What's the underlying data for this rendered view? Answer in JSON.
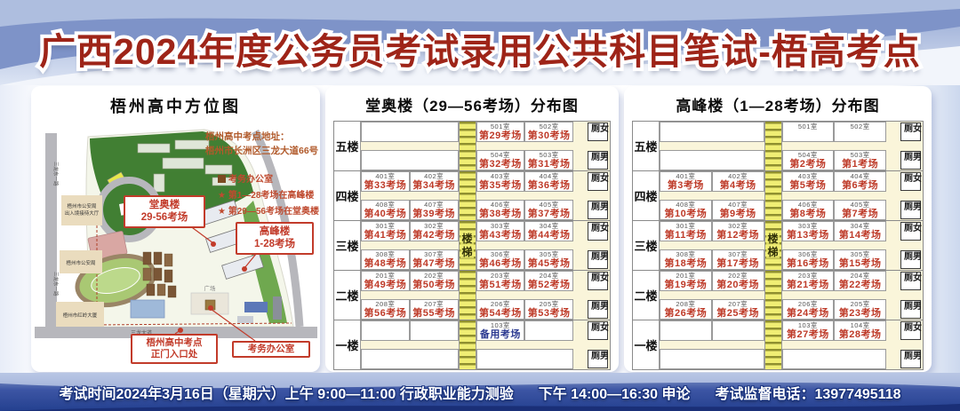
{
  "title": "广西2024年度公务员考试录用公共科目笔试-梧高考点",
  "colors": {
    "title_red": "#9E2418",
    "exam_red": "#BE3A28",
    "backup_blue": "#2B3990",
    "table_bg": "#FAF5DA",
    "stair_yellow": "#F0EE74"
  },
  "map": {
    "title": "梧州高中方位图",
    "address1": "梧州高中考点地址：",
    "address2": "梧州市长洲区三龙大道66号",
    "legend_office": "考务办公室",
    "legend_star1": "★ 第1—28考场在高峰楼",
    "legend_star2": "★ 第29—56考场在堂奥楼",
    "label_tangao1": "堂奥楼",
    "label_tangao2": "29-56考场",
    "label_gaofeng1": "高峰楼",
    "label_gaofeng2": "1-28考场",
    "label_gate1": "梧州高中考点",
    "label_gate2": "正门入口处",
    "label_office": "考务办公室",
    "bld_police_hall1": "梧州市公安局",
    "bld_police_hall2": "出入境接待大厅",
    "bld_police": "梧州市公安局",
    "bld_tower": "梧州市红岭大厦",
    "road_left": "三龙东一路",
    "road_bottom": "三龙大道",
    "label_plaza": "广场"
  },
  "buildings": [
    {
      "id": "tangao",
      "title": "堂奥楼（29—56考场）分布图",
      "stair_label": "楼梯",
      "toilet_female": "女厕",
      "toilet_male": "男厕",
      "floors": [
        {
          "label": "五楼",
          "top": [
            {
              "span": 2
            },
            {
              "room": "501室",
              "exam": "第29考场"
            },
            {
              "room": "502室",
              "exam": "第30考场"
            }
          ],
          "bottom": [
            {
              "span": 2
            },
            {
              "room": "504室",
              "exam": "第32考场"
            },
            {
              "room": "503室",
              "exam": "第31考场"
            }
          ]
        },
        {
          "label": "四楼",
          "top": [
            {
              "room": "401室",
              "exam": "第33考场"
            },
            {
              "room": "402室",
              "exam": "第34考场"
            },
            {
              "room": "403室",
              "exam": "第35考场"
            },
            {
              "room": "404室",
              "exam": "第36考场"
            }
          ],
          "bottom": [
            {
              "room": "408室",
              "exam": "第40考场"
            },
            {
              "room": "407室",
              "exam": "第39考场"
            },
            {
              "room": "406室",
              "exam": "第38考场"
            },
            {
              "room": "405室",
              "exam": "第37考场"
            }
          ]
        },
        {
          "label": "三楼",
          "top": [
            {
              "room": "301室",
              "exam": "第41考场"
            },
            {
              "room": "302室",
              "exam": "第42考场"
            },
            {
              "room": "303室",
              "exam": "第43考场"
            },
            {
              "room": "304室",
              "exam": "第44考场"
            }
          ],
          "bottom": [
            {
              "room": "308室",
              "exam": "第48考场"
            },
            {
              "room": "307室",
              "exam": "第47考场"
            },
            {
              "room": "306室",
              "exam": "第46考场"
            },
            {
              "room": "305室",
              "exam": "第45考场"
            }
          ]
        },
        {
          "label": "二楼",
          "top": [
            {
              "room": "201室",
              "exam": "第49考场"
            },
            {
              "room": "202室",
              "exam": "第50考场"
            },
            {
              "room": "203室",
              "exam": "第51考场"
            },
            {
              "room": "204室",
              "exam": "第52考场"
            }
          ],
          "bottom": [
            {
              "room": "208室",
              "exam": "第56考场"
            },
            {
              "room": "207室",
              "exam": "第55考场"
            },
            {
              "room": "206室",
              "exam": "第54考场"
            },
            {
              "room": "205室",
              "exam": "第53考场"
            }
          ]
        },
        {
          "label": "一楼",
          "top": [
            {},
            {},
            {
              "room": "103室",
              "exam": "备用考场",
              "color": "blue"
            },
            {}
          ],
          "bottom": [
            {
              "span": 2
            },
            {
              "span": 2
            }
          ]
        }
      ]
    },
    {
      "id": "gaofeng",
      "title": "高峰楼（1—28考场）分布图",
      "stair_label": "楼梯",
      "toilet_female": "女厕",
      "toilet_male": "男厕",
      "floors": [
        {
          "label": "五楼",
          "top": [
            {
              "span": 2
            },
            {
              "room": "501室"
            },
            {
              "room": "502室"
            }
          ],
          "bottom": [
            {
              "span": 2
            },
            {
              "room": "504室",
              "exam": "第2考场"
            },
            {
              "room": "503室",
              "exam": "第1考场"
            }
          ]
        },
        {
          "label": "四楼",
          "top": [
            {
              "room": "401室",
              "exam": "第3考场"
            },
            {
              "room": "402室",
              "exam": "第4考场"
            },
            {
              "room": "403室",
              "exam": "第5考场"
            },
            {
              "room": "404室",
              "exam": "第6考场"
            }
          ],
          "bottom": [
            {
              "room": "408室",
              "exam": "第10考场"
            },
            {
              "room": "407室",
              "exam": "第9考场"
            },
            {
              "room": "406室",
              "exam": "第8考场"
            },
            {
              "room": "405室",
              "exam": "第7考场"
            }
          ]
        },
        {
          "label": "三楼",
          "top": [
            {
              "room": "301室",
              "exam": "第11考场"
            },
            {
              "room": "302室",
              "exam": "第12考场"
            },
            {
              "room": "303室",
              "exam": "第13考场"
            },
            {
              "room": "304室",
              "exam": "第14考场"
            }
          ],
          "bottom": [
            {
              "room": "308室",
              "exam": "第18考场"
            },
            {
              "room": "307室",
              "exam": "第17考场"
            },
            {
              "room": "306室",
              "exam": "第16考场"
            },
            {
              "room": "305室",
              "exam": "第15考场"
            }
          ]
        },
        {
          "label": "二楼",
          "top": [
            {
              "room": "201室",
              "exam": "第19考场"
            },
            {
              "room": "202室",
              "exam": "第20考场"
            },
            {
              "room": "203室",
              "exam": "第21考场"
            },
            {
              "room": "204室",
              "exam": "第22考场"
            }
          ],
          "bottom": [
            {
              "room": "208室",
              "exam": "第26考场"
            },
            {
              "room": "207室",
              "exam": "第25考场"
            },
            {
              "room": "206室",
              "exam": "第24考场"
            },
            {
              "room": "205室",
              "exam": "第23考场"
            }
          ]
        },
        {
          "label": "一楼",
          "top": [
            {},
            {},
            {
              "room": "103室",
              "exam": "第27考场"
            },
            {
              "room": "104室",
              "exam": "第28考场"
            }
          ],
          "bottom": [
            {
              "span": 2
            },
            {
              "span": 2
            }
          ]
        }
      ]
    }
  ],
  "footer": {
    "time": "考试时间2024年3月16日（星期六）上午 9:00—11:00 行政职业能力测验",
    "afternoon": "下午 14:00—16:30 申论",
    "phone": "考试监督电话：13977495118"
  }
}
